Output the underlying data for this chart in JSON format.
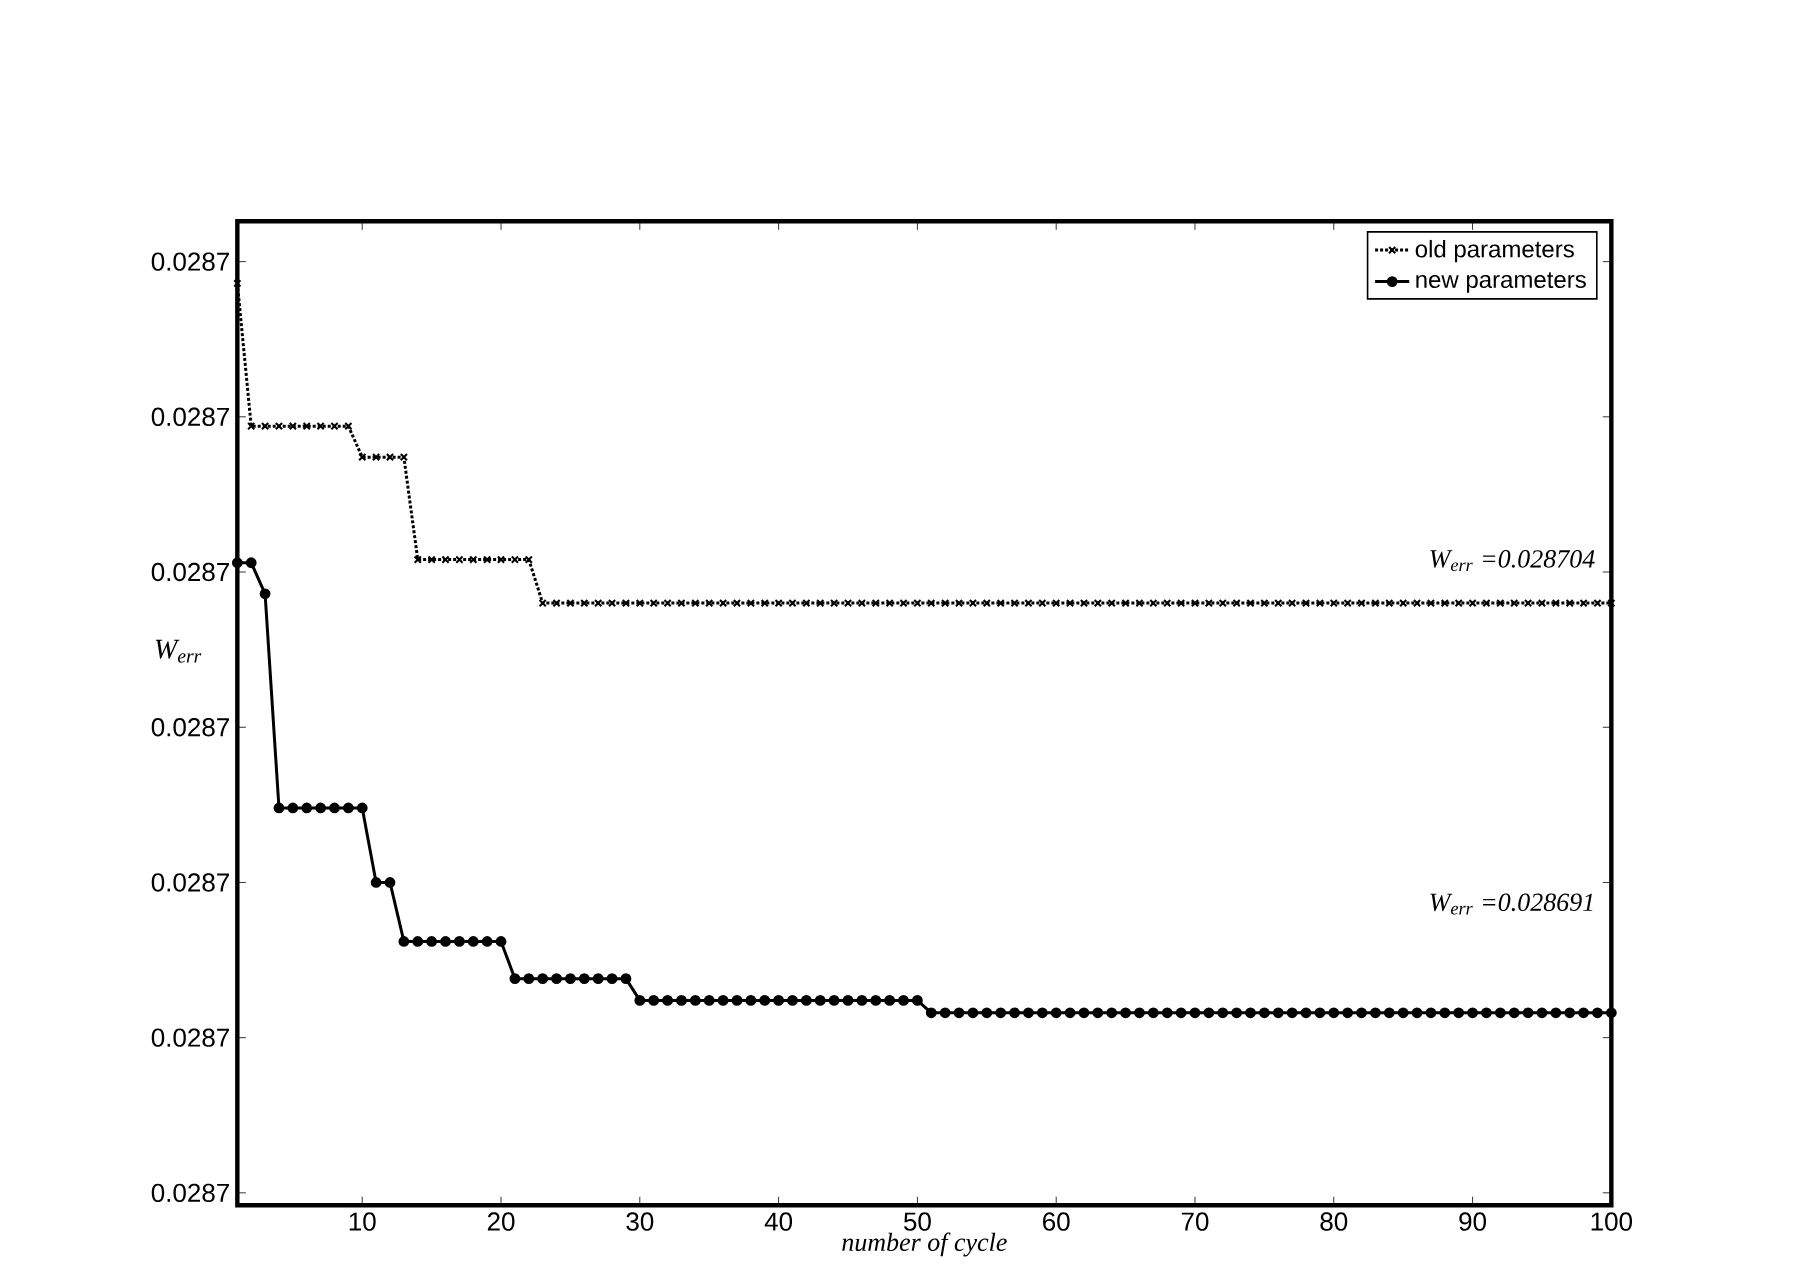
{
  "chart_data": {
    "type": "line",
    "xlabel": "number of cycle",
    "ylabel": "W$_{err}$",
    "x": [
      1,
      2,
      3,
      4,
      5,
      6,
      7,
      8,
      9,
      10,
      11,
      12,
      13,
      14,
      15,
      16,
      17,
      18,
      19,
      20,
      21,
      22,
      23,
      24,
      25,
      26,
      27,
      28,
      29,
      30,
      31,
      32,
      33,
      34,
      35,
      36,
      37,
      38,
      39,
      40,
      41,
      42,
      43,
      44,
      45,
      46,
      47,
      48,
      49,
      50,
      51,
      52,
      53,
      54,
      55,
      56,
      57,
      58,
      59,
      60,
      61,
      62,
      63,
      64,
      65,
      66,
      67,
      68,
      69,
      70,
      71,
      72,
      73,
      74,
      75,
      76,
      77,
      78,
      79,
      80,
      81,
      82,
      83,
      84,
      85,
      86,
      87,
      88,
      89,
      90,
      91,
      92,
      93,
      94,
      95,
      96,
      97,
      98,
      99,
      100
    ],
    "series": [
      {
        "name": "old parameters",
        "color": "#000000",
        "marker": "cross",
        "line_style": "dotted",
        "values": [
          0.0287143,
          0.0287097,
          0.0287097,
          0.0287097,
          0.0287097,
          0.0287097,
          0.0287097,
          0.0287097,
          0.0287097,
          0.0287087,
          0.0287087,
          0.0287087,
          0.0287087,
          0.0287054,
          0.0287054,
          0.0287054,
          0.0287054,
          0.0287054,
          0.0287054,
          0.0287054,
          0.0287054,
          0.0287054,
          0.028704,
          0.028704,
          0.028704,
          0.028704,
          0.028704,
          0.028704,
          0.028704,
          0.028704,
          0.028704,
          0.028704,
          0.028704,
          0.028704,
          0.028704,
          0.028704,
          0.028704,
          0.028704,
          0.028704,
          0.028704,
          0.028704,
          0.028704,
          0.028704,
          0.028704,
          0.028704,
          0.028704,
          0.028704,
          0.028704,
          0.028704,
          0.028704,
          0.028704,
          0.028704,
          0.028704,
          0.028704,
          0.028704,
          0.028704,
          0.028704,
          0.028704,
          0.028704,
          0.028704,
          0.028704,
          0.028704,
          0.028704,
          0.028704,
          0.028704,
          0.028704,
          0.028704,
          0.028704,
          0.028704,
          0.028704,
          0.028704,
          0.028704,
          0.028704,
          0.028704,
          0.028704,
          0.028704,
          0.028704,
          0.028704,
          0.028704,
          0.028704,
          0.028704,
          0.028704,
          0.028704,
          0.028704,
          0.028704,
          0.028704,
          0.028704,
          0.028704,
          0.028704,
          0.028704,
          0.028704,
          0.028704,
          0.028704,
          0.028704,
          0.028704,
          0.028704,
          0.028704,
          0.028704,
          0.028704,
          0.028704
        ]
      },
      {
        "name": "new parameters",
        "color": "#000000",
        "marker": "circle",
        "line_style": "solid",
        "values": [
          0.0287053,
          0.0287053,
          0.0287043,
          0.0286974,
          0.0286974,
          0.0286974,
          0.0286974,
          0.0286974,
          0.0286974,
          0.0286974,
          0.028695,
          0.028695,
          0.0286931,
          0.0286931,
          0.0286931,
          0.0286931,
          0.0286931,
          0.0286931,
          0.0286931,
          0.0286931,
          0.0286919,
          0.0286919,
          0.0286919,
          0.0286919,
          0.0286919,
          0.0286919,
          0.0286919,
          0.0286919,
          0.0286919,
          0.0286912,
          0.0286912,
          0.0286912,
          0.0286912,
          0.0286912,
          0.0286912,
          0.0286912,
          0.0286912,
          0.0286912,
          0.0286912,
          0.0286912,
          0.0286912,
          0.0286912,
          0.0286912,
          0.0286912,
          0.0286912,
          0.0286912,
          0.0286912,
          0.0286912,
          0.0286912,
          0.0286912,
          0.0286908,
          0.0286908,
          0.0286908,
          0.0286908,
          0.0286908,
          0.0286908,
          0.0286908,
          0.0286908,
          0.0286908,
          0.0286908,
          0.0286908,
          0.0286908,
          0.0286908,
          0.0286908,
          0.0286908,
          0.0286908,
          0.0286908,
          0.0286908,
          0.0286908,
          0.0286908,
          0.0286908,
          0.0286908,
          0.0286908,
          0.0286908,
          0.0286908,
          0.0286908,
          0.0286908,
          0.0286908,
          0.0286908,
          0.0286908,
          0.0286908,
          0.0286908,
          0.0286908,
          0.0286908,
          0.0286908,
          0.0286908,
          0.0286908,
          0.0286908,
          0.0286908,
          0.0286908,
          0.0286908,
          0.0286908,
          0.0286908,
          0.0286908,
          0.0286908,
          0.0286908,
          0.0286908,
          0.0286908,
          0.0286908,
          0.0286908
        ]
      }
    ],
    "xlim": [
      1,
      100
    ],
    "xticks": [
      10,
      20,
      30,
      40,
      50,
      60,
      70,
      80,
      90,
      100
    ],
    "ylim": [
      0.0286846,
      0.0287163
    ],
    "yticks": [
      {
        "value": 0.028685,
        "label": "0.0287"
      },
      {
        "value": 0.02869,
        "label": "0.0287"
      },
      {
        "value": 0.028695,
        "label": "0.0287"
      },
      {
        "value": 0.0287,
        "label": "0.0287"
      },
      {
        "value": 0.028705,
        "label": "0.0287"
      },
      {
        "value": 0.02871,
        "label": "0.0287"
      },
      {
        "value": 0.028715,
        "label": "0.0287"
      }
    ],
    "legend": "top right",
    "grid": false,
    "annotations": [
      "W$_{err}$ =0.028704",
      "W$_{err}$ =0.028691"
    ]
  }
}
